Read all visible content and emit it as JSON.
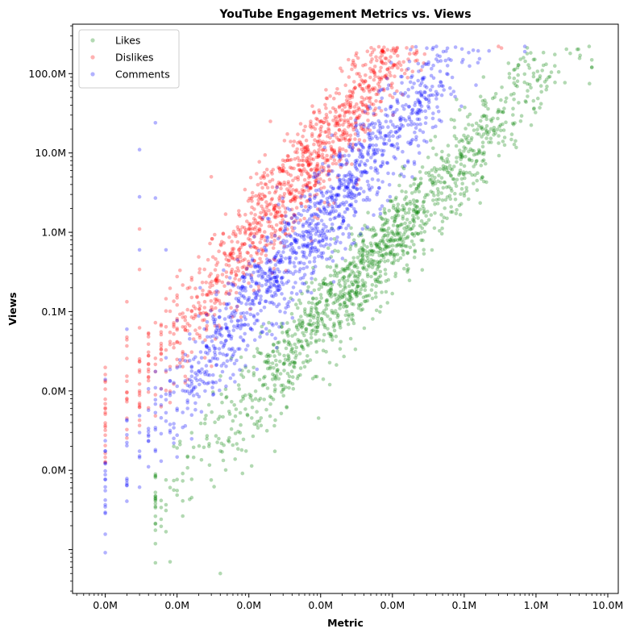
{
  "chart_data": {
    "type": "scatter",
    "title": "YouTube Engagement Metrics vs. Views",
    "xlabel": "Metric",
    "ylabel": "Views",
    "x_scale": "log",
    "y_scale": "log",
    "xlim": [
      0.35,
      14000000
    ],
    "ylim": [
      28,
      420000000
    ],
    "x_ticks": [
      1,
      10,
      100,
      1000,
      10000,
      100000,
      1000000,
      10000000
    ],
    "x_tick_labels": [
      "0.0M",
      "0.0M",
      "0.0M",
      "0.0M",
      "0.0M",
      "0.1M",
      "1.0M",
      "10.0M"
    ],
    "y_ticks": [
      100,
      1000,
      10000,
      100000,
      1000000,
      10000000,
      100000000
    ],
    "y_tick_labels": [
      "0.0M",
      "0.0M",
      "0.1M",
      "1.0M",
      "10.0M",
      "100.0M"
    ],
    "y_tick_values_shown": [
      1000,
      10000,
      100000,
      1000000,
      10000000,
      100000000
    ],
    "grid": false,
    "legend_position": "top-left",
    "series": [
      {
        "name": "Likes",
        "color": "#008000",
        "alpha": 0.3,
        "clusters": [
          {
            "x": [
              5,
              6000000
            ],
            "y": [
              60,
              220000000
            ],
            "slope": 1.0,
            "offset": 80,
            "spread": 0.55
          }
        ],
        "points": [
          [
            5500000,
            220000000
          ],
          [
            6000000,
            120000000
          ],
          [
            3000000,
            180000000
          ],
          [
            1500000,
            90000000
          ],
          [
            40,
            50
          ],
          [
            8,
            70
          ]
        ]
      },
      {
        "name": "Dislikes",
        "color": "#ff0000",
        "alpha": 0.3,
        "clusters": [
          {
            "x": [
              1,
              330000
            ],
            "y": [
              100,
              220000000
            ],
            "slope": 1.15,
            "offset": 4000,
            "spread": 0.6
          }
        ],
        "points": [
          [
            300000,
            220000000
          ],
          [
            330000,
            210000000
          ],
          [
            30,
            5000000
          ],
          [
            3,
            1100000
          ],
          [
            3,
            340000
          ],
          [
            200,
            25000000
          ],
          [
            1000,
            25000000
          ]
        ]
      },
      {
        "name": "Comments",
        "color": "#0000ff",
        "alpha": 0.3,
        "clusters": [
          {
            "x": [
              1,
              700000
            ],
            "y": [
              70,
              220000000
            ],
            "slope": 1.1,
            "offset": 700,
            "spread": 0.6
          }
        ],
        "points": [
          [
            700000,
            220000000
          ],
          [
            5,
            24000000
          ],
          [
            3,
            11000000
          ],
          [
            3,
            2800000
          ],
          [
            5,
            2700000
          ],
          [
            1,
            14000
          ],
          [
            3,
            600000
          ],
          [
            7,
            600000
          ],
          [
            2,
            60000
          ]
        ]
      }
    ]
  }
}
